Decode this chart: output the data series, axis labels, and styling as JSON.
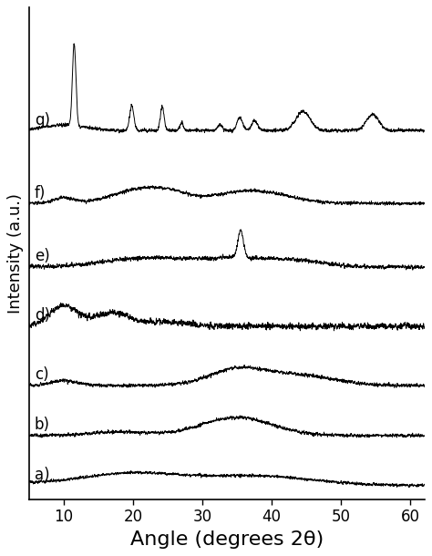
{
  "xlabel": "Angle (degrees 2θ)",
  "ylabel": "Intensity (a.u.)",
  "xlim": [
    5,
    62
  ],
  "ylim": [
    -0.3,
    10.5
  ],
  "xticks": [
    10,
    20,
    30,
    40,
    50,
    60
  ],
  "labels": [
    "a)",
    "b)",
    "c)",
    "d)",
    "e)",
    "f)",
    "g)"
  ],
  "offsets": [
    0.0,
    1.1,
    2.2,
    3.5,
    4.8,
    6.2,
    7.8
  ],
  "line_color": "#000000",
  "background_color": "#ffffff",
  "xlabel_fontsize": 16,
  "ylabel_fontsize": 13,
  "tick_fontsize": 12,
  "label_fontsize": 12
}
